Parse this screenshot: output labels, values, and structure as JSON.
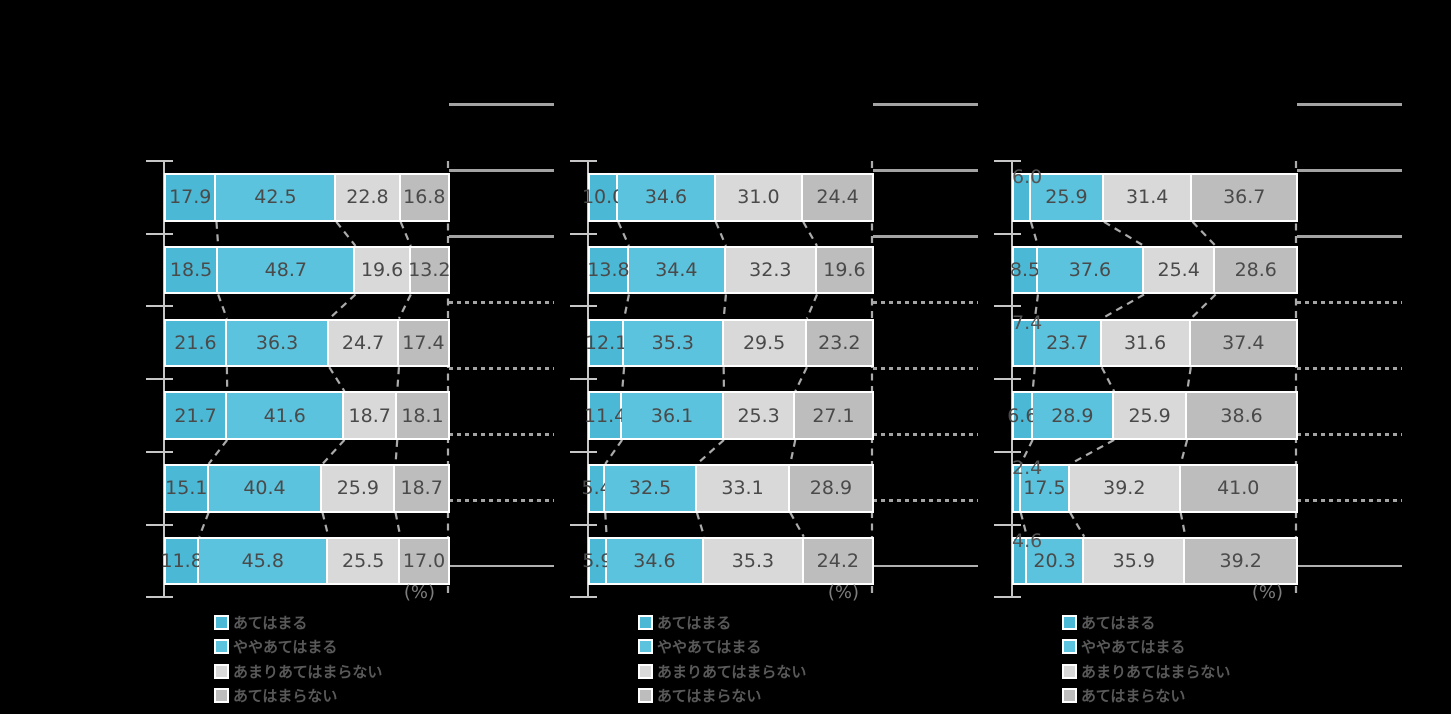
{
  "unit_label": "(%)",
  "colors": {
    "background": "#000000",
    "segment_colors": [
      "#4BB9D5",
      "#5BC3DD",
      "#D9D9D9",
      "#BDBDBD"
    ],
    "segment_border": "#FFFFFF",
    "axis": "#C6C6C6",
    "connector": "#ABABAB",
    "table_line": "#A3A3A3",
    "value_text": "#4A4A4A",
    "legend_text": "#595959",
    "unit_text": "#7D7D7D"
  },
  "legend": {
    "items": [
      {
        "label": "あてはまる"
      },
      {
        "label": "ややあてはまる"
      },
      {
        "label": "あまりあてはまらない"
      },
      {
        "label": "あてはまらない"
      }
    ]
  },
  "chart_data": [
    {
      "type": "bar",
      "stacked": true,
      "orientation": "horizontal",
      "unit": "%",
      "xlim": [
        0,
        100
      ],
      "n_rows": 6,
      "legend_position": "bottom-left",
      "series": [
        {
          "name": "あてはまる",
          "values": [
            17.9,
            18.5,
            21.6,
            21.7,
            15.1,
            11.8
          ]
        },
        {
          "name": "ややあてはまる",
          "values": [
            42.5,
            48.7,
            36.3,
            41.6,
            40.4,
            45.8
          ]
        },
        {
          "name": "あまりあてはまらない",
          "values": [
            22.8,
            19.6,
            24.7,
            18.7,
            25.9,
            25.5
          ]
        },
        {
          "name": "あてはまらない",
          "values": [
            16.8,
            13.2,
            17.4,
            18.1,
            18.7,
            17.0
          ]
        }
      ],
      "raised_first_value_labels": []
    },
    {
      "type": "bar",
      "stacked": true,
      "orientation": "horizontal",
      "unit": "%",
      "xlim": [
        0,
        100
      ],
      "n_rows": 6,
      "legend_position": "bottom-left",
      "series": [
        {
          "name": "あてはまる",
          "values": [
            10.0,
            13.8,
            12.1,
            11.4,
            5.4,
            5.9
          ]
        },
        {
          "name": "ややあてはまる",
          "values": [
            34.6,
            34.4,
            35.3,
            36.1,
            32.5,
            34.6
          ]
        },
        {
          "name": "あまりあてはまらない",
          "values": [
            31.0,
            32.3,
            29.5,
            25.3,
            33.1,
            35.3
          ]
        },
        {
          "name": "あてはまらない",
          "values": [
            24.4,
            19.6,
            23.2,
            27.1,
            28.9,
            24.2
          ]
        }
      ],
      "raised_first_value_labels": []
    },
    {
      "type": "bar",
      "stacked": true,
      "orientation": "horizontal",
      "unit": "%",
      "xlim": [
        0,
        100
      ],
      "n_rows": 6,
      "legend_position": "bottom-left",
      "series": [
        {
          "name": "あてはまる",
          "values": [
            6.0,
            8.5,
            7.4,
            6.6,
            2.4,
            4.6
          ]
        },
        {
          "name": "ややあてはまる",
          "values": [
            25.9,
            37.6,
            23.7,
            28.9,
            17.5,
            20.3
          ]
        },
        {
          "name": "あまりあてはまらない",
          "values": [
            31.4,
            25.4,
            31.6,
            25.9,
            39.2,
            35.9
          ]
        },
        {
          "name": "あてはまらない",
          "values": [
            36.7,
            28.6,
            37.4,
            38.6,
            41.0,
            39.2
          ]
        }
      ],
      "raised_first_value_labels": [
        0,
        2,
        4,
        5
      ]
    }
  ]
}
